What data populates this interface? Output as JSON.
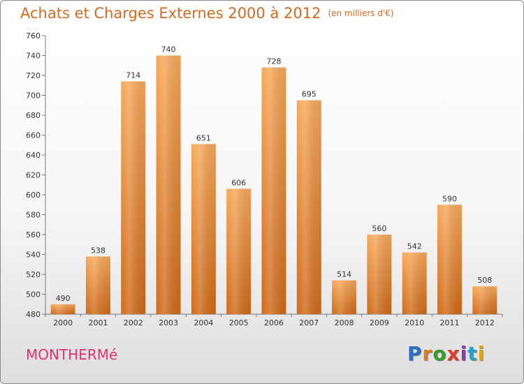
{
  "header": {
    "title": "Achats et Charges Externes 2000 à 2012",
    "unit": "(en milliers d'€)"
  },
  "commune": "MONTHERMé",
  "logo": {
    "text": "Proxiti",
    "letter_colors": [
      "#2a6fc0",
      "#e07a1a",
      "#3a9a2a",
      "#e03a2a",
      "#8a3ab0",
      "#2aa0c8",
      "#e0a51a"
    ]
  },
  "colors": {
    "bar_light": "#f7a85a",
    "bar_dark": "#cf6a1a",
    "title": "#d2691e",
    "commune": "#e0316b"
  },
  "chart_data": {
    "type": "bar",
    "categories": [
      "2000",
      "2001",
      "2002",
      "2003",
      "2004",
      "2005",
      "2006",
      "2007",
      "2008",
      "2009",
      "2010",
      "2011",
      "2012"
    ],
    "values": [
      490,
      538,
      714,
      740,
      651,
      606,
      728,
      695,
      514,
      560,
      542,
      590,
      508
    ],
    "title": "Achats et Charges Externes 2000 à 2012",
    "ylim": [
      480,
      760
    ],
    "yticks": [
      480,
      500,
      520,
      540,
      560,
      580,
      600,
      620,
      640,
      660,
      680,
      700,
      720,
      740,
      760
    ],
    "grid": false,
    "legend": "none"
  }
}
